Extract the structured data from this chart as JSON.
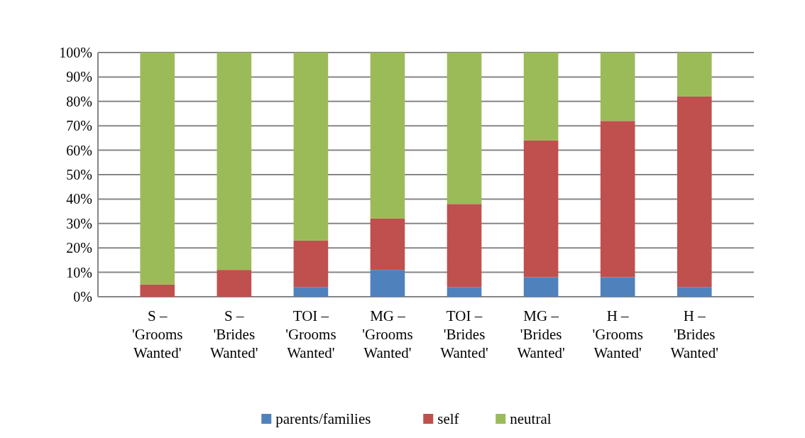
{
  "chart_data": {
    "type": "bar",
    "stacked": true,
    "categories": [
      "S – 'Grooms Wanted'",
      "S – 'Brides Wanted'",
      "TOI – 'Grooms Wanted'",
      "MG – 'Grooms Wanted'",
      "TOI – 'Brides Wanted'",
      "MG – 'Brides Wanted'",
      "H – 'Grooms Wanted'",
      "H – 'Brides Wanted'"
    ],
    "series": [
      {
        "name": "parents/families",
        "color": "#4f81bd",
        "values": [
          0,
          0,
          4,
          11,
          4,
          8,
          8,
          4
        ]
      },
      {
        "name": "self",
        "color": "#c0504d",
        "values": [
          5,
          11,
          19,
          21,
          34,
          56,
          64,
          78
        ]
      },
      {
        "name": "neutral",
        "color": "#9bbb59",
        "values": [
          95,
          89,
          77,
          68,
          62,
          36,
          28,
          18
        ]
      }
    ],
    "ylim": [
      0,
      100
    ],
    "yticks": [
      {
        "value": 0,
        "label": "0%"
      },
      {
        "value": 10,
        "label": "10%"
      },
      {
        "value": 20,
        "label": "20%"
      },
      {
        "value": 30,
        "label": "30%"
      },
      {
        "value": 40,
        "label": "40%"
      },
      {
        "value": 50,
        "label": "50%"
      },
      {
        "value": 60,
        "label": "60%"
      },
      {
        "value": 70,
        "label": "70%"
      },
      {
        "value": 80,
        "label": "80%"
      },
      {
        "value": 90,
        "label": "90%"
      },
      {
        "value": 100,
        "label": "100%"
      }
    ],
    "grid": "y",
    "legend": "bottom"
  }
}
